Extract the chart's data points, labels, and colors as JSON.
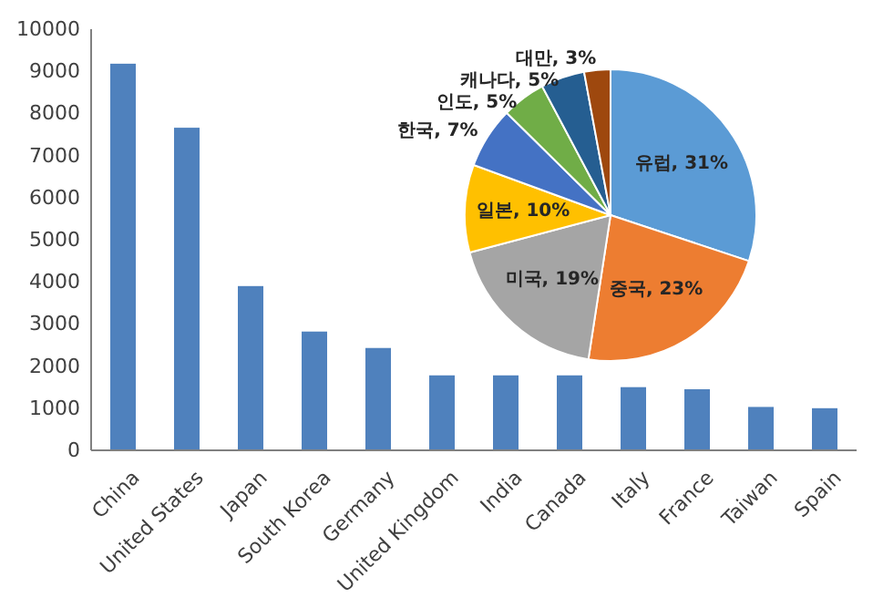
{
  "chart_data": [
    {
      "type": "bar",
      "categories": [
        "China",
        "United States",
        "Japan",
        "South Korea",
        "Germany",
        "United Kingdom",
        "India",
        "Canada",
        "Italy",
        "France",
        "Taiwan",
        "Spain"
      ],
      "values": [
        9180,
        7660,
        3900,
        2820,
        2430,
        1780,
        1780,
        1780,
        1500,
        1450,
        1030,
        1000
      ],
      "color": "#4f81bd",
      "ylim": [
        0,
        10000
      ],
      "yticks": [
        0,
        1000,
        2000,
        3000,
        4000,
        5000,
        6000,
        7000,
        8000,
        9000,
        10000
      ],
      "grid": false
    },
    {
      "type": "pie",
      "categories": [
        "유럽",
        "중국",
        "미국",
        "일본",
        "한국",
        "인도",
        "캐나다",
        "대만"
      ],
      "values": [
        31,
        23,
        19,
        10,
        7,
        5,
        5,
        3
      ],
      "value_labels": [
        "31%",
        "23%",
        "19%",
        "10%",
        "7%",
        "5%",
        "5%",
        "3%"
      ],
      "colors": [
        "#5b9bd5",
        "#ed7d31",
        "#a5a5a5",
        "#ffc000",
        "#4472c4",
        "#70ad47",
        "#255e91",
        "#9e480e"
      ]
    }
  ]
}
